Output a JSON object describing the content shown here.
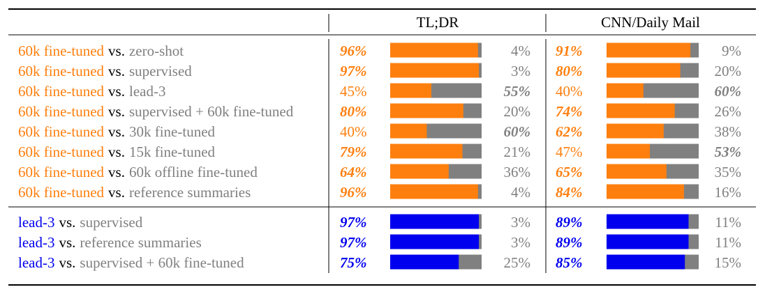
{
  "colors": {
    "fine_tuned": "#ff7f0e",
    "lead3": "#0000ee",
    "gray": "#808080",
    "vs_text": "#000000"
  },
  "chart_data": {
    "type": "bar",
    "columns": [
      "TL;DR",
      "CNN/Daily Mail"
    ],
    "vs_word": "vs.",
    "groups": [
      {
        "left_name": "60k fine-tuned",
        "color": "fine_tuned",
        "rows": [
          {
            "right_name": "zero-shot",
            "tldr": 96,
            "cnn": 91
          },
          {
            "right_name": "supervised",
            "tldr": 97,
            "cnn": 80
          },
          {
            "right_name": "lead-3",
            "tldr": 45,
            "cnn": 40
          },
          {
            "right_name": "supervised + 60k fine-tuned",
            "tldr": 80,
            "cnn": 74
          },
          {
            "right_name": "30k fine-tuned",
            "tldr": 40,
            "cnn": 62
          },
          {
            "right_name": "15k fine-tuned",
            "tldr": 79,
            "cnn": 47
          },
          {
            "right_name": "60k offline fine-tuned",
            "tldr": 64,
            "cnn": 65
          },
          {
            "right_name": "reference summaries",
            "tldr": 96,
            "cnn": 84
          }
        ]
      },
      {
        "left_name": "lead-3",
        "color": "lead3",
        "rows": [
          {
            "right_name": "supervised",
            "tldr": 97,
            "cnn": 89
          },
          {
            "right_name": "reference summaries",
            "tldr": 97,
            "cnn": 89
          },
          {
            "right_name": "supervised + 60k fine-tuned",
            "tldr": 75,
            "cnn": 85
          }
        ]
      }
    ],
    "unit": "%"
  }
}
